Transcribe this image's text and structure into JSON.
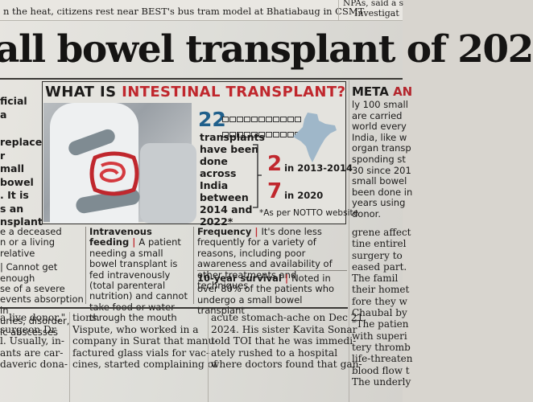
{
  "top": {
    "left_snippet": "n the heat, citizens rest near BEST's bus tram model at Bhatiabaug in CSMT",
    "right_snippet_1": "NPAs, said a s",
    "right_snippet_2": "Investigat"
  },
  "headline": "all bowel transplant of 202",
  "left_column_lines": [
    "ficial",
    "a",
    "",
    "replace",
    "r",
    "mall",
    "bowel",
    ". It is",
    "s an",
    "nsplant"
  ],
  "right_column": {
    "heading_black": "META ",
    "heading_red": "AN",
    "lines": [
      "ly 100 small",
      "are carried",
      "world every",
      "India, like w",
      "organ transp",
      "sponding st",
      "30 since 201",
      "small bowel",
      "been done in",
      "years using",
      "donor."
    ]
  },
  "infographic": {
    "title_black": "WHAT IS ",
    "title_red": "INTESTINAL TRANSPLANT?",
    "count": "22",
    "count_text": "transplants have been done across India between 2014 and 2022*",
    "stat_a_number": "2",
    "stat_a_label": "in 2013-2014",
    "stat_b_number": "7",
    "stat_b_label": "in 2020",
    "source_note": "*As per NOTTO website",
    "colors": {
      "accent_red": "#c0272d",
      "accent_blue": "#1f5f8b"
    },
    "icons": [
      "intestine-illustration",
      "india-map-icon"
    ]
  },
  "lower_left": [
    "e a deceased",
    "n or a living relative",
    "",
    "| Cannot get enough",
    "se of a severe",
    "events absorption in",
    "uries, disorder,",
    "ic abscesses"
  ],
  "intravenous": {
    "label": "Intravenous feeding",
    "text": "A patient needing a small bowel transplant is fed intravenously (total parenteral nutrition) and cannot take food or water through the mouth"
  },
  "frequency": {
    "label": "Frequency",
    "text": "It's done less frequently for a variety of reasons, including poor awareness and availability of other treatments and techniques"
  },
  "survival": {
    "label": "10-year survival",
    "text": "Noted in over 80% of the patients who undergo a small bowel transplant"
  },
  "right_body_lines": [
    "grene affect",
    "tine entirel",
    "surgery to",
    "eased part.",
    "  The famil",
    "their homet",
    "fore they w",
    "Chaubal by",
    "\"The patien",
    "with superi",
    "tery thromb",
    "life-threaten",
    "blood flow t",
    "The underly"
  ],
  "body_columns": {
    "col1": [
      "a live donor,\"",
      "surgeon Dr",
      "l. Usually, in-",
      "ants are car-",
      "daveric dona-"
    ],
    "col2": [
      "tions.",
      "  Vispute, who worked in a",
      "company in Surat that manu-",
      "factured glass vials for vac-",
      "cines, started complaining of"
    ],
    "col3": [
      "acute stomach-ache on Dec 21,",
      "2024. His sister Kavita Sonar",
      "told TOI that he was immedi-",
      "ately rushed to a hospital",
      "where doctors found that gan-"
    ]
  }
}
